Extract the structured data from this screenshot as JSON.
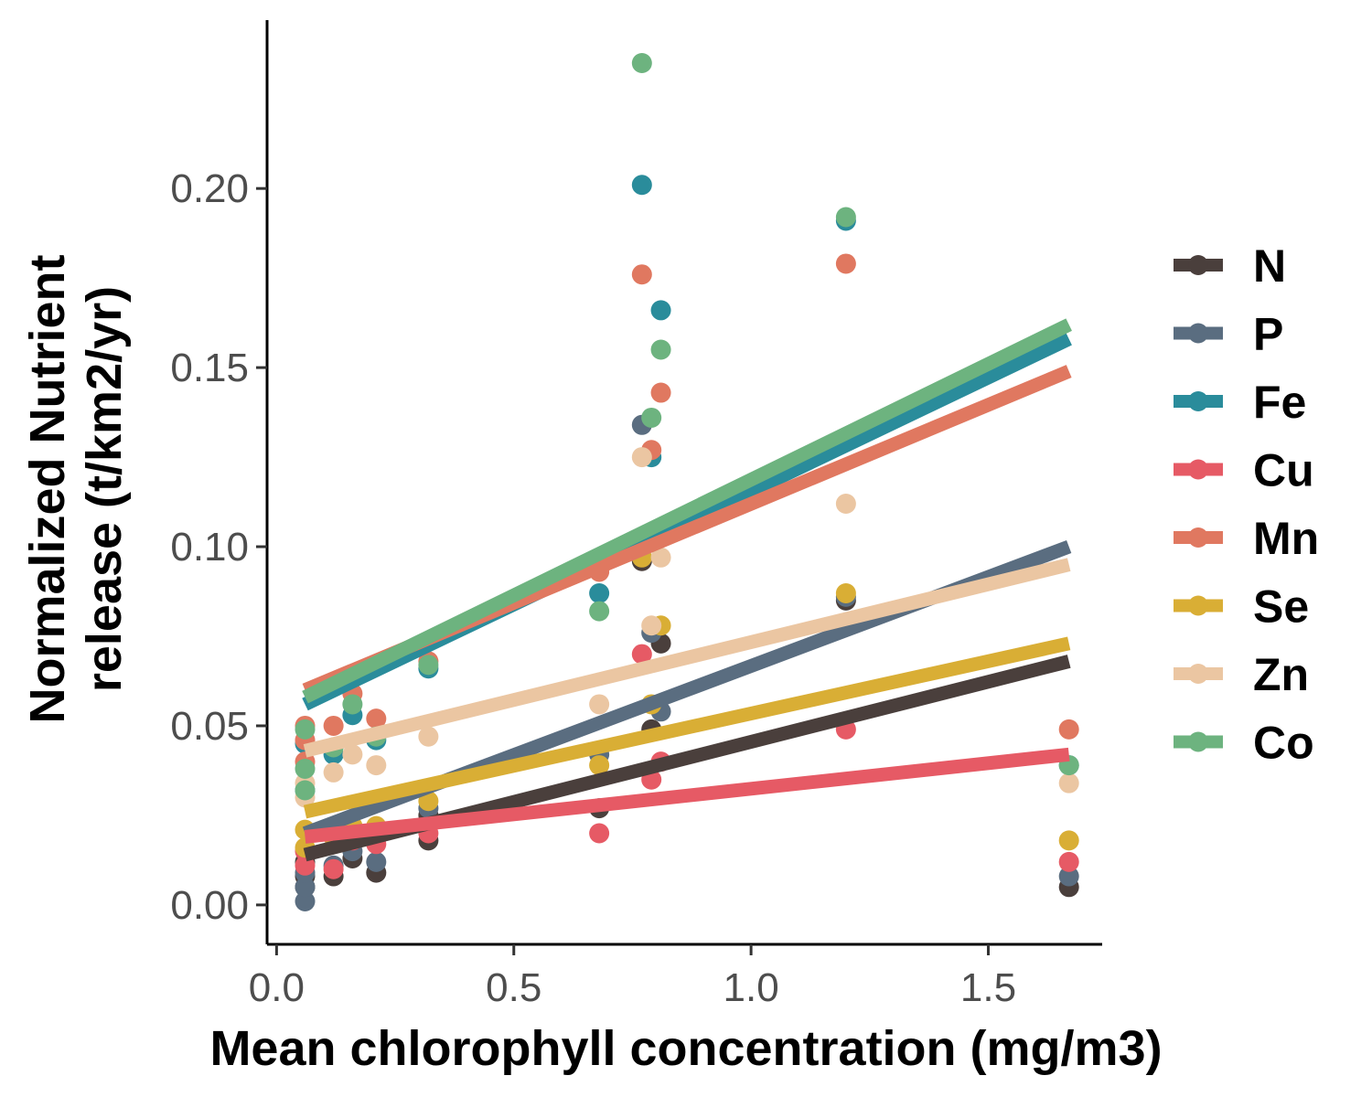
{
  "chart_data": {
    "type": "scatter",
    "xlabel": "Mean chlorophyll concentration (mg/m3)",
    "ylabel_lines": [
      "Normalized Nutrient",
      "release (t/km2/yr)"
    ],
    "xlim": [
      -0.02,
      1.74
    ],
    "ylim": [
      -0.011,
      0.247
    ],
    "x_ticks": [
      0.0,
      0.5,
      1.0,
      1.5
    ],
    "x_tick_labels": [
      "0.0",
      "0.5",
      "1.0",
      "1.5"
    ],
    "y_ticks": [
      0.0,
      0.05,
      0.1,
      0.15,
      0.2
    ],
    "y_tick_labels": [
      "0.00",
      "0.05",
      "0.10",
      "0.15",
      "0.20"
    ],
    "grid": false,
    "legend_position": "right",
    "series": [
      {
        "name": "N",
        "color": "#4a3f3c",
        "points": [
          [
            0.06,
            0.005
          ],
          [
            0.06,
            0.008
          ],
          [
            0.06,
            0.012
          ],
          [
            0.12,
            0.008
          ],
          [
            0.16,
            0.013
          ],
          [
            0.21,
            0.009
          ],
          [
            0.32,
            0.018
          ],
          [
            0.32,
            0.025
          ],
          [
            0.68,
            0.027
          ],
          [
            0.77,
            0.096
          ],
          [
            0.79,
            0.049
          ],
          [
            0.81,
            0.073
          ],
          [
            1.2,
            0.085
          ],
          [
            1.67,
            0.005
          ]
        ],
        "fit": [
          [
            0.06,
            0.014
          ],
          [
            1.67,
            0.068
          ]
        ]
      },
      {
        "name": "P",
        "color": "#5a6d80",
        "points": [
          [
            0.06,
            0.001
          ],
          [
            0.06,
            0.005
          ],
          [
            0.06,
            0.009
          ],
          [
            0.12,
            0.011
          ],
          [
            0.16,
            0.015
          ],
          [
            0.21,
            0.012
          ],
          [
            0.32,
            0.027
          ],
          [
            0.68,
            0.042
          ],
          [
            0.77,
            0.134
          ],
          [
            0.79,
            0.076
          ],
          [
            0.81,
            0.054
          ],
          [
            1.2,
            0.086
          ],
          [
            1.67,
            0.008
          ]
        ],
        "fit": [
          [
            0.06,
            0.02
          ],
          [
            1.67,
            0.1
          ]
        ]
      },
      {
        "name": "Fe",
        "color": "#2a8c9b",
        "points": [
          [
            0.06,
            0.032
          ],
          [
            0.06,
            0.045
          ],
          [
            0.12,
            0.042
          ],
          [
            0.16,
            0.053
          ],
          [
            0.21,
            0.046
          ],
          [
            0.32,
            0.066
          ],
          [
            0.68,
            0.087
          ],
          [
            0.77,
            0.201
          ],
          [
            0.79,
            0.125
          ],
          [
            0.81,
            0.166
          ],
          [
            1.2,
            0.191
          ],
          [
            1.67,
            0.039
          ]
        ],
        "fit": [
          [
            0.06,
            0.056
          ],
          [
            1.67,
            0.158
          ]
        ]
      },
      {
        "name": "Cu",
        "color": "#e65a65",
        "points": [
          [
            0.06,
            0.011
          ],
          [
            0.06,
            0.015
          ],
          [
            0.12,
            0.01
          ],
          [
            0.16,
            0.018
          ],
          [
            0.21,
            0.017
          ],
          [
            0.32,
            0.02
          ],
          [
            0.68,
            0.02
          ],
          [
            0.77,
            0.07
          ],
          [
            0.79,
            0.035
          ],
          [
            0.81,
            0.04
          ],
          [
            1.2,
            0.049
          ],
          [
            1.67,
            0.012
          ]
        ],
        "fit": [
          [
            0.06,
            0.019
          ],
          [
            1.67,
            0.042
          ]
        ]
      },
      {
        "name": "Mn",
        "color": "#e07860",
        "points": [
          [
            0.06,
            0.04
          ],
          [
            0.06,
            0.046
          ],
          [
            0.06,
            0.05
          ],
          [
            0.12,
            0.05
          ],
          [
            0.16,
            0.059
          ],
          [
            0.21,
            0.052
          ],
          [
            0.32,
            0.068
          ],
          [
            0.68,
            0.093
          ],
          [
            0.77,
            0.176
          ],
          [
            0.79,
            0.127
          ],
          [
            0.81,
            0.143
          ],
          [
            1.2,
            0.179
          ],
          [
            1.67,
            0.049
          ]
        ],
        "fit": [
          [
            0.06,
            0.06
          ],
          [
            1.67,
            0.149
          ]
        ]
      },
      {
        "name": "Se",
        "color": "#d9ae35",
        "points": [
          [
            0.06,
            0.016
          ],
          [
            0.06,
            0.021
          ],
          [
            0.12,
            0.019
          ],
          [
            0.16,
            0.022
          ],
          [
            0.21,
            0.022
          ],
          [
            0.32,
            0.029
          ],
          [
            0.68,
            0.039
          ],
          [
            0.77,
            0.097
          ],
          [
            0.79,
            0.056
          ],
          [
            0.81,
            0.078
          ],
          [
            1.2,
            0.087
          ],
          [
            1.67,
            0.018
          ]
        ],
        "fit": [
          [
            0.06,
            0.026
          ],
          [
            1.67,
            0.073
          ]
        ]
      },
      {
        "name": "Zn",
        "color": "#ebc6a2",
        "points": [
          [
            0.06,
            0.03
          ],
          [
            0.06,
            0.034
          ],
          [
            0.12,
            0.037
          ],
          [
            0.16,
            0.042
          ],
          [
            0.21,
            0.039
          ],
          [
            0.32,
            0.047
          ],
          [
            0.68,
            0.056
          ],
          [
            0.77,
            0.125
          ],
          [
            0.79,
            0.078
          ],
          [
            0.81,
            0.097
          ],
          [
            1.2,
            0.112
          ],
          [
            1.67,
            0.034
          ]
        ],
        "fit": [
          [
            0.06,
            0.043
          ],
          [
            1.67,
            0.095
          ]
        ]
      },
      {
        "name": "Co",
        "color": "#6db37f",
        "points": [
          [
            0.06,
            0.032
          ],
          [
            0.06,
            0.038
          ],
          [
            0.06,
            0.049
          ],
          [
            0.12,
            0.044
          ],
          [
            0.16,
            0.056
          ],
          [
            0.21,
            0.047
          ],
          [
            0.32,
            0.067
          ],
          [
            0.68,
            0.082
          ],
          [
            0.77,
            0.235
          ],
          [
            0.79,
            0.136
          ],
          [
            0.81,
            0.155
          ],
          [
            1.2,
            0.192
          ],
          [
            1.67,
            0.039
          ]
        ],
        "fit": [
          [
            0.06,
            0.058
          ],
          [
            1.67,
            0.162
          ]
        ]
      }
    ]
  }
}
